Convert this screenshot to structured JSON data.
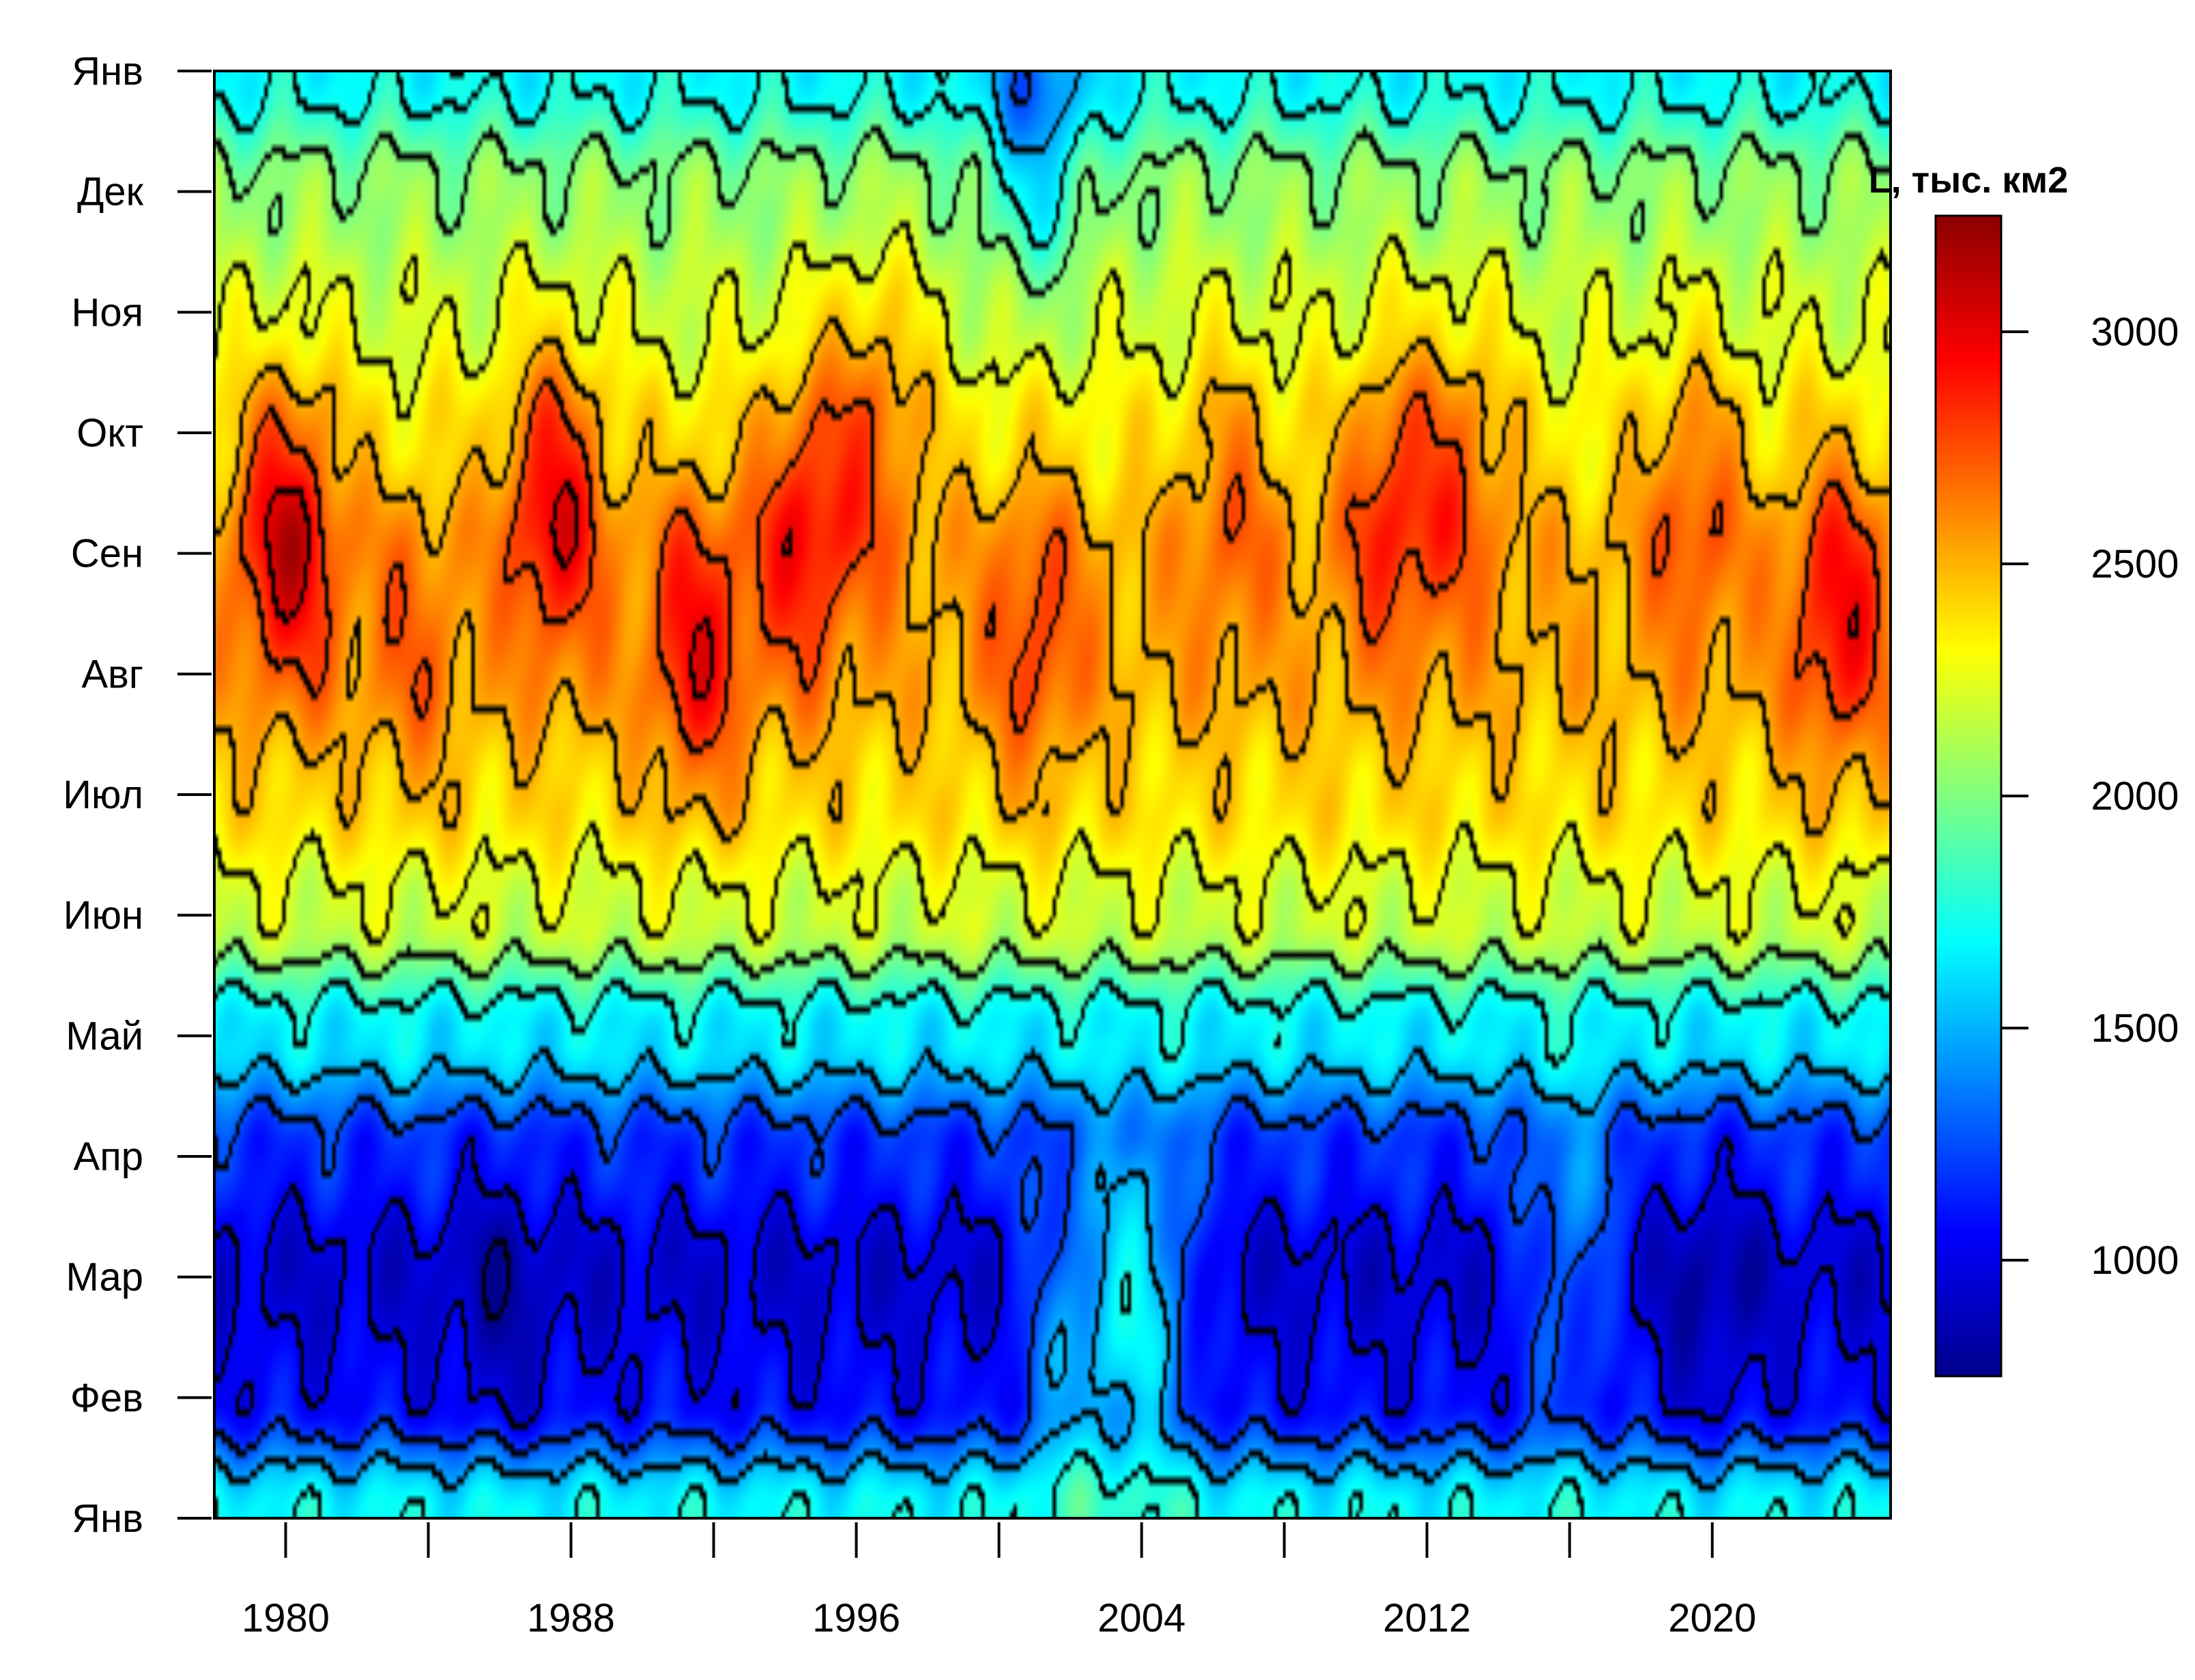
{
  "chart_data": {
    "type": "heatmap",
    "title": "",
    "xlabel": "",
    "ylabel": "",
    "x_range": [
      1978,
      2025
    ],
    "x_ticks": [
      1980,
      1984,
      1988,
      1992,
      1996,
      2000,
      2004,
      2008,
      2012,
      2016,
      2020
    ],
    "x_tick_labels": [
      "1980",
      "1988",
      "1996",
      "2004",
      "2012",
      "2020"
    ],
    "y_tick_labels": [
      "Янв",
      "Фев",
      "Мар",
      "Апр",
      "Май",
      "Июн",
      "Июл",
      "Авг",
      "Сен",
      "Окт",
      "Ноя",
      "Дек",
      "Янв"
    ],
    "colorbar": {
      "title": "L, тыс. км2",
      "range": [
        750,
        3250
      ],
      "ticks": [
        1000,
        1500,
        2000,
        2500,
        3000
      ],
      "colors": [
        "#00008b",
        "#0000ff",
        "#0080ff",
        "#00ffff",
        "#80ff80",
        "#ffff00",
        "#ff8000",
        "#ff0000",
        "#8b0000"
      ]
    },
    "contour_step": 250,
    "seasonal_cycle_months": [
      1,
      2,
      3,
      4,
      5,
      6,
      7,
      8,
      9,
      10,
      11,
      12,
      13
    ],
    "seasonal_cycle_values": [
      1700,
      1050,
      950,
      1150,
      1650,
      2200,
      2400,
      2500,
      2500,
      2350,
      2200,
      2050,
      1700
    ],
    "anomaly_centers": [
      {
        "year": 1980,
        "month": 9.2,
        "value": 600
      },
      {
        "year": 1983.5,
        "month": 8.2,
        "value": 200
      },
      {
        "year": 1987.5,
        "month": 9.5,
        "value": 550
      },
      {
        "year": 1991.5,
        "month": 8.2,
        "value": 450
      },
      {
        "year": 1994.5,
        "month": 9.3,
        "value": 450
      },
      {
        "year": 1996.5,
        "month": 10.2,
        "value": 350
      },
      {
        "year": 2001,
        "month": 8.3,
        "value": 300
      },
      {
        "year": 2002,
        "month": 2.5,
        "value": 400
      },
      {
        "year": 2006.5,
        "month": 9.5,
        "value": 250
      },
      {
        "year": 2011,
        "month": 9.5,
        "value": 400
      },
      {
        "year": 2013,
        "month": 9.8,
        "value": 300
      },
      {
        "year": 2019.5,
        "month": 9.5,
        "value": 300
      },
      {
        "year": 2023.6,
        "month": 8.5,
        "value": 450
      },
      {
        "year": 2001,
        "month": 12.5,
        "value": -450
      },
      {
        "year": 2004,
        "month": 2.8,
        "value": 650
      },
      {
        "year": 2016,
        "month": 3.2,
        "value": 350
      },
      {
        "year": 1986,
        "month": 2.8,
        "value": -150
      },
      {
        "year": 2020,
        "month": 2.8,
        "value": -150
      }
    ]
  }
}
